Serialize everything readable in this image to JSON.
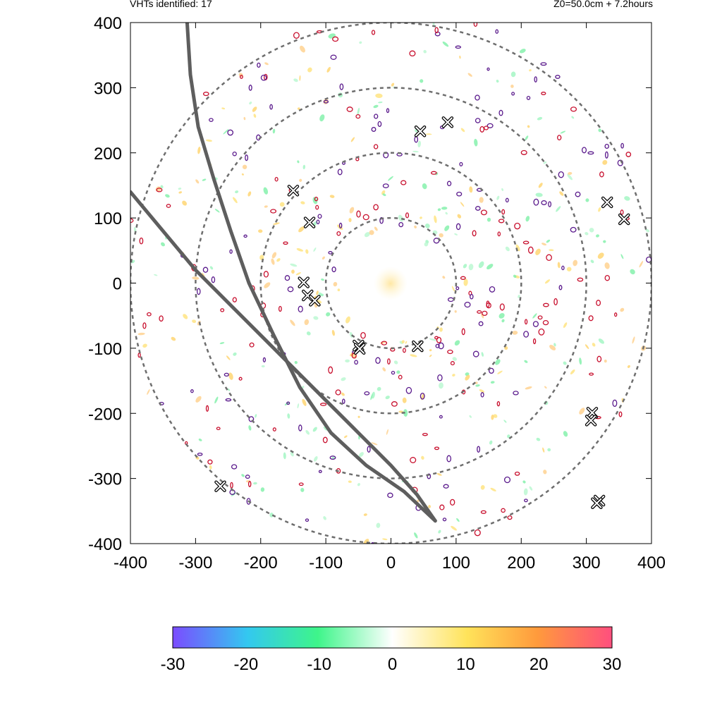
{
  "header": {
    "left_text": "VHTs identified: 17",
    "right_text": "Z0=50.0cm  + 7.2hours"
  },
  "chart_data": {
    "type": "scatter",
    "title": "",
    "xlabel": "",
    "ylabel": "",
    "xlim": [
      -400,
      400
    ],
    "ylim": [
      -400,
      400
    ],
    "x_ticks": [
      "-400",
      "-300",
      "-200",
      "-100",
      "0",
      "100",
      "200",
      "300",
      "400"
    ],
    "y_ticks": [
      "400",
      "300",
      "200",
      "100",
      "0",
      "-100",
      "-200",
      "-300",
      "-400"
    ],
    "grid": false,
    "reference_circle_radii": [
      100,
      200,
      300,
      400
    ],
    "vht_markers": [
      {
        "x": 45,
        "y": 233
      },
      {
        "x": 87,
        "y": 247
      },
      {
        "x": -150,
        "y": 142
      },
      {
        "x": -125,
        "y": 93
      },
      {
        "x": 332,
        "y": 124
      },
      {
        "x": 358,
        "y": 98
      },
      {
        "x": -134,
        "y": 1
      },
      {
        "x": -128,
        "y": -19
      },
      {
        "x": -117,
        "y": -27
      },
      {
        "x": -50,
        "y": -96
      },
      {
        "x": -48,
        "y": -101
      },
      {
        "x": 41,
        "y": -97
      },
      {
        "x": 309,
        "y": -199
      },
      {
        "x": 307,
        "y": -211
      },
      {
        "x": -262,
        "y": -312
      },
      {
        "x": 320,
        "y": -334
      },
      {
        "x": 316,
        "y": -338
      }
    ],
    "tracks": [
      {
        "points": [
          [
            -313,
            400
          ],
          [
            -308,
            320
          ],
          [
            -296,
            240
          ],
          [
            -272,
            160
          ],
          [
            -246,
            80
          ],
          [
            -218,
            0
          ],
          [
            -180,
            -80
          ],
          [
            -140,
            -160
          ],
          [
            -92,
            -230
          ],
          [
            -38,
            -280
          ],
          [
            20,
            -320
          ],
          [
            68,
            -365
          ]
        ]
      },
      {
        "points": [
          [
            -400,
            140
          ],
          [
            -350,
            80
          ],
          [
            -300,
            20
          ],
          [
            -240,
            -40
          ],
          [
            -180,
            -100
          ],
          [
            -120,
            -160
          ],
          [
            -60,
            -220
          ],
          [
            0,
            -280
          ],
          [
            40,
            -325
          ],
          [
            68,
            -365
          ]
        ]
      }
    ],
    "colorbar": {
      "min": -30,
      "max": 30,
      "tick_labels": [
        "-30",
        "-20",
        "-10",
        "0",
        "10",
        "20",
        "30"
      ],
      "colors": [
        "#7b4cff",
        "#33c8f0",
        "#3ef58a",
        "#ffffff",
        "#ffe35a",
        "#ff9a3c",
        "#ff4f7e"
      ]
    }
  }
}
